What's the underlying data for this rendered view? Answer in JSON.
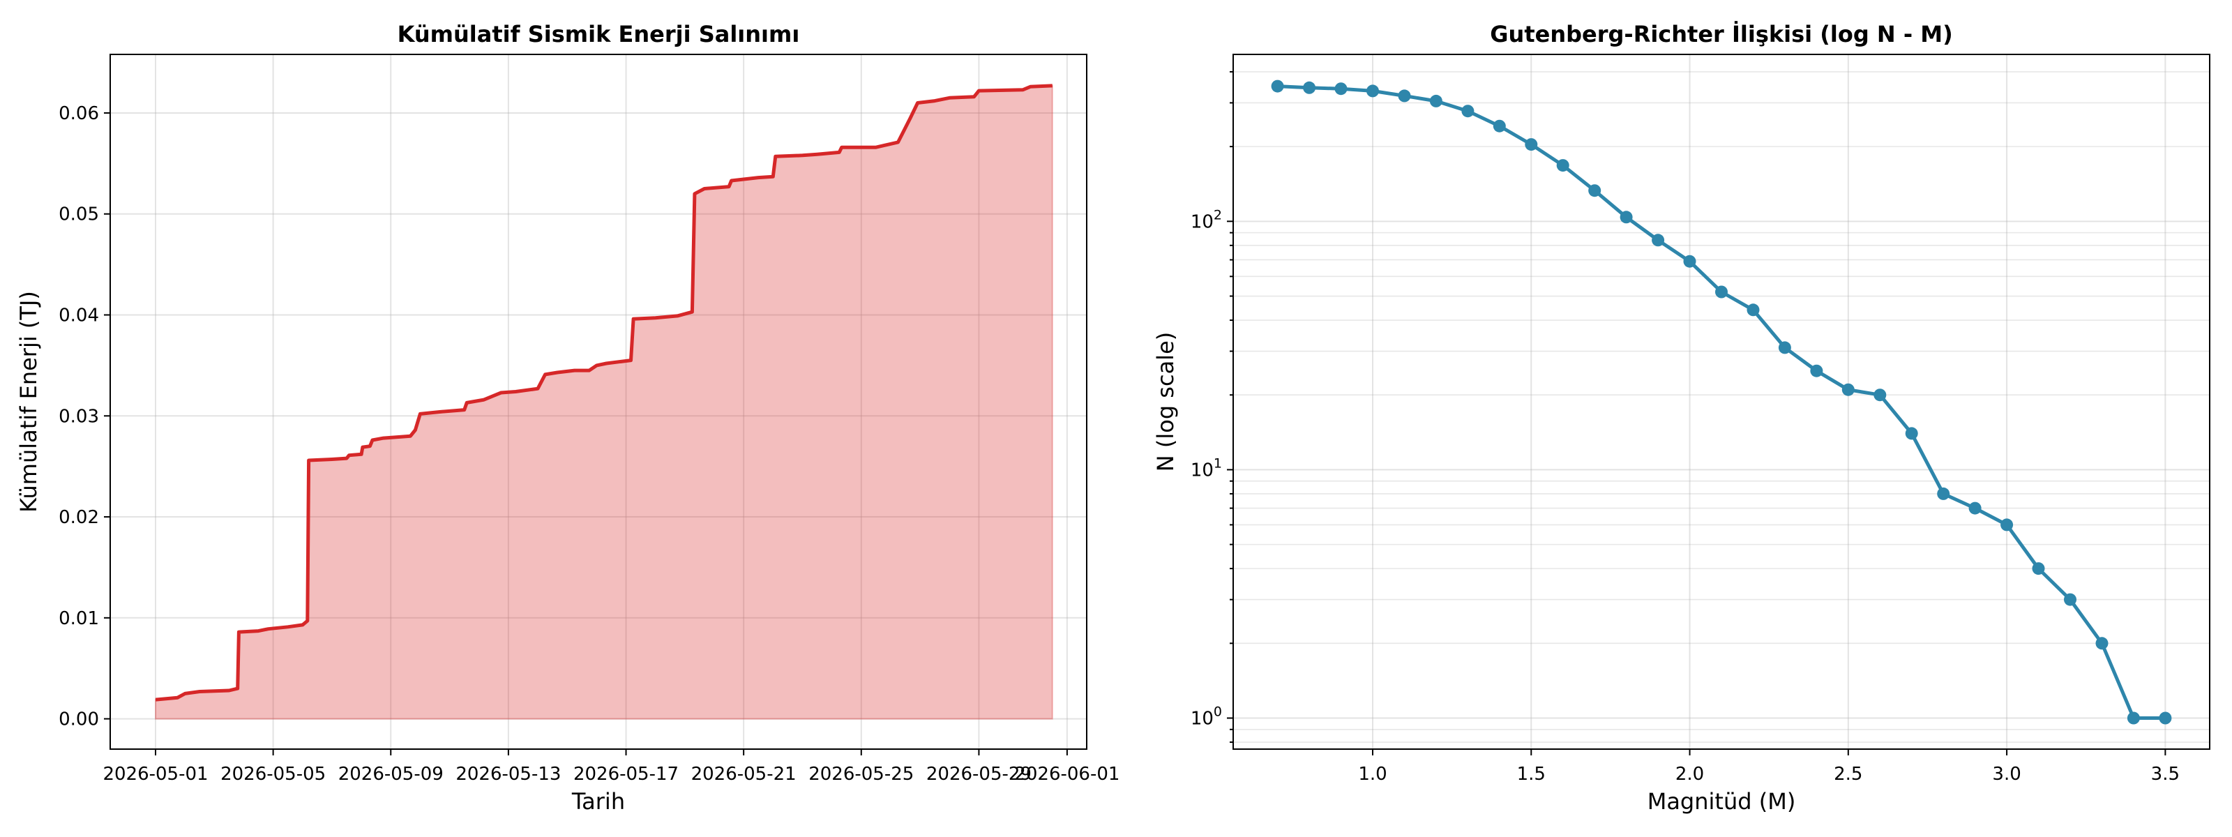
{
  "chart_data": [
    {
      "type": "area",
      "title": "Kümülatif Sismik Enerji Salınımı",
      "xlabel": "Tarih",
      "ylabel": "Kümülatif Enerji (TJ)",
      "xlim": [
        "2026-04-29T11:00",
        "2026-06-01T16:00"
      ],
      "ylim": [
        -0.003,
        0.0658
      ],
      "x_ticks": [
        "2026-05-01",
        "2026-05-05",
        "2026-05-09",
        "2026-05-13",
        "2026-05-17",
        "2026-05-21",
        "2026-05-25",
        "2026-05-29",
        "2026-06-01"
      ],
      "y_ticks": [
        "0.00",
        "0.01",
        "0.02",
        "0.03",
        "0.04",
        "0.05",
        "0.06"
      ],
      "grid": true,
      "colors": {
        "line": "#d62728",
        "fill": "#d62728",
        "fill_alpha": 0.3
      },
      "series": [
        {
          "points": [
            [
              "2026-05-01T00:00",
              0.0019
            ],
            [
              "2026-05-01T18:00",
              0.0021
            ],
            [
              "2026-05-02T00:00",
              0.0025
            ],
            [
              "2026-05-02T12:00",
              0.0027
            ],
            [
              "2026-05-03T12:00",
              0.0028
            ],
            [
              "2026-05-03T19:00",
              0.003
            ],
            [
              "2026-05-03T20:00",
              0.0086
            ],
            [
              "2026-05-04T12:00",
              0.0087
            ],
            [
              "2026-05-04T20:00",
              0.0089
            ],
            [
              "2026-05-05T12:00",
              0.0091
            ],
            [
              "2026-05-06T00:00",
              0.0093
            ],
            [
              "2026-05-06T04:00",
              0.0097
            ],
            [
              "2026-05-06T05:00",
              0.0256
            ],
            [
              "2026-05-07T00:00",
              0.0257
            ],
            [
              "2026-05-07T12:00",
              0.0258
            ],
            [
              "2026-05-07T14:00",
              0.0261
            ],
            [
              "2026-05-08T00:00",
              0.0262
            ],
            [
              "2026-05-08T01:00",
              0.0269
            ],
            [
              "2026-05-08T07:00",
              0.027
            ],
            [
              "2026-05-08T09:00",
              0.0276
            ],
            [
              "2026-05-08T18:00",
              0.0278
            ],
            [
              "2026-05-09T16:00",
              0.028
            ],
            [
              "2026-05-09T20:00",
              0.0286
            ],
            [
              "2026-05-10T00:00",
              0.0302
            ],
            [
              "2026-05-10T16:00",
              0.0304
            ],
            [
              "2026-05-11T12:00",
              0.0306
            ],
            [
              "2026-05-11T14:00",
              0.0313
            ],
            [
              "2026-05-12T04:00",
              0.0316
            ],
            [
              "2026-05-12T12:00",
              0.032
            ],
            [
              "2026-05-12T18:00",
              0.0323
            ],
            [
              "2026-05-13T06:00",
              0.0324
            ],
            [
              "2026-05-14T00:00",
              0.0327
            ],
            [
              "2026-05-14T06:00",
              0.0341
            ],
            [
              "2026-05-14T16:00",
              0.0343
            ],
            [
              "2026-05-15T06:00",
              0.0345
            ],
            [
              "2026-05-15T18:00",
              0.0345
            ],
            [
              "2026-05-16T00:00",
              0.035
            ],
            [
              "2026-05-16T08:00",
              0.0352
            ],
            [
              "2026-05-17T04:00",
              0.0355
            ],
            [
              "2026-05-17T06:00",
              0.0396
            ],
            [
              "2026-05-18T00:00",
              0.0397
            ],
            [
              "2026-05-18T18:00",
              0.0399
            ],
            [
              "2026-05-19T06:00",
              0.0403
            ],
            [
              "2026-05-19T08:00",
              0.052
            ],
            [
              "2026-05-19T16:00",
              0.0525
            ],
            [
              "2026-05-20T12:00",
              0.0527
            ],
            [
              "2026-05-20T14:00",
              0.0533
            ],
            [
              "2026-05-21T12:00",
              0.0536
            ],
            [
              "2026-05-22T00:00",
              0.0537
            ],
            [
              "2026-05-22T02:00",
              0.0557
            ],
            [
              "2026-05-23T00:00",
              0.0558
            ],
            [
              "2026-05-23T12:00",
              0.0559
            ],
            [
              "2026-05-24T06:00",
              0.0561
            ],
            [
              "2026-05-24T08:00",
              0.0566
            ],
            [
              "2026-05-25T12:00",
              0.0566
            ],
            [
              "2026-05-26T06:00",
              0.0571
            ],
            [
              "2026-05-26T16:00",
              0.0595
            ],
            [
              "2026-05-26T22:00",
              0.061
            ],
            [
              "2026-05-27T12:00",
              0.0612
            ],
            [
              "2026-05-28T00:00",
              0.0615
            ],
            [
              "2026-05-28T20:00",
              0.0616
            ],
            [
              "2026-05-29T00:00",
              0.0622
            ],
            [
              "2026-05-30T12:00",
              0.0623
            ],
            [
              "2026-05-30T18:00",
              0.0626
            ],
            [
              "2026-05-31T12:00",
              0.0627
            ]
          ]
        }
      ]
    },
    {
      "type": "line",
      "title": "Gutenberg-Richter İlişkisi (log N - M)",
      "xlabel": "Magnitüd (M)",
      "ylabel": "N (log scale)",
      "xlim": [
        0.56,
        3.64
      ],
      "ylim": [
        0.75,
        470
      ],
      "y_scale": "log",
      "x_ticks": [
        "1.0",
        "1.5",
        "2.0",
        "2.5",
        "3.0",
        "3.5"
      ],
      "y_ticks": [
        {
          "base": "10",
          "exp": "0",
          "value": 1
        },
        {
          "base": "10",
          "exp": "1",
          "value": 10
        },
        {
          "base": "10",
          "exp": "2",
          "value": 100
        }
      ],
      "grid": true,
      "colors": {
        "line": "#2e86ab"
      },
      "series": [
        {
          "x": [
            0.7,
            0.8,
            0.9,
            1.0,
            1.1,
            1.2,
            1.3,
            1.4,
            1.5,
            1.6,
            1.7,
            1.8,
            1.9,
            2.0,
            2.1,
            2.2,
            2.3,
            2.4,
            2.5,
            2.6,
            2.7,
            2.8,
            2.9,
            3.0,
            3.1,
            3.2,
            3.3,
            3.4,
            3.5
          ],
          "y": [
            350,
            345,
            342,
            335,
            320,
            305,
            278,
            242,
            204,
            168,
            133,
            104,
            84,
            69,
            52,
            44,
            31,
            25,
            21,
            20,
            14,
            8,
            7,
            6,
            4,
            3,
            2,
            1,
            1
          ]
        }
      ]
    }
  ]
}
